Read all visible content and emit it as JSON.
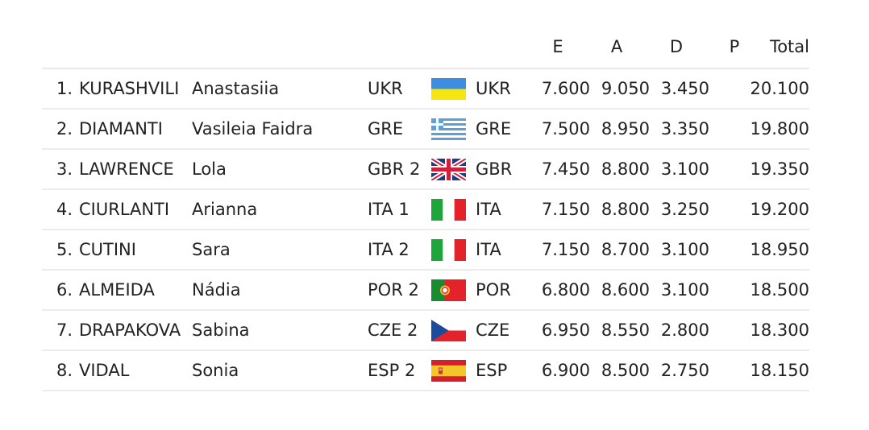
{
  "header": {
    "col_e": "E",
    "col_a": "A",
    "col_d": "D",
    "col_p": "P",
    "col_total": "Total"
  },
  "rows": [
    {
      "rank": "1.",
      "surname": "KURASHVILI",
      "given": "Anastasiia",
      "team": "UKR",
      "flag": "ukraine-flag-icon",
      "nation": "UKR",
      "e": "7.600",
      "a": "9.050",
      "d": "3.450",
      "p": "",
      "total": "20.100"
    },
    {
      "rank": "2.",
      "surname": "DIAMANTI",
      "given": "Vasileia Faidra",
      "team": "GRE",
      "flag": "greece-flag-icon",
      "nation": "GRE",
      "e": "7.500",
      "a": "8.950",
      "d": "3.350",
      "p": "",
      "total": "19.800"
    },
    {
      "rank": "3.",
      "surname": "LAWRENCE",
      "given": "Lola",
      "team": "GBR 2",
      "flag": "uk-flag-icon",
      "nation": "GBR",
      "e": "7.450",
      "a": "8.800",
      "d": "3.100",
      "p": "",
      "total": "19.350"
    },
    {
      "rank": "4.",
      "surname": "CIURLANTI",
      "given": "Arianna",
      "team": "ITA 1",
      "flag": "italy-flag-icon",
      "nation": "ITA",
      "e": "7.150",
      "a": "8.800",
      "d": "3.250",
      "p": "",
      "total": "19.200"
    },
    {
      "rank": "5.",
      "surname": "CUTINI",
      "given": "Sara",
      "team": "ITA 2",
      "flag": "italy-flag-icon",
      "nation": "ITA",
      "e": "7.150",
      "a": "8.700",
      "d": "3.100",
      "p": "",
      "total": "18.950"
    },
    {
      "rank": "6.",
      "surname": "ALMEIDA",
      "given": "Nádia",
      "team": "POR 2",
      "flag": "portugal-flag-icon",
      "nation": "POR",
      "e": "6.800",
      "a": "8.600",
      "d": "3.100",
      "p": "",
      "total": "18.500"
    },
    {
      "rank": "7.",
      "surname": "DRAPAKOVA",
      "given": "Sabina",
      "team": "CZE 2",
      "flag": "czech-flag-icon",
      "nation": "CZE",
      "e": "6.950",
      "a": "8.550",
      "d": "2.800",
      "p": "",
      "total": "18.300"
    },
    {
      "rank": "8.",
      "surname": "VIDAL",
      "given": "Sonia",
      "team": "ESP 2",
      "flag": "spain-flag-icon",
      "nation": "ESP",
      "e": "6.900",
      "a": "8.500",
      "d": "2.750",
      "p": "",
      "total": "18.150"
    }
  ],
  "colors": {
    "text": "#222222",
    "divider": "#ececec"
  }
}
